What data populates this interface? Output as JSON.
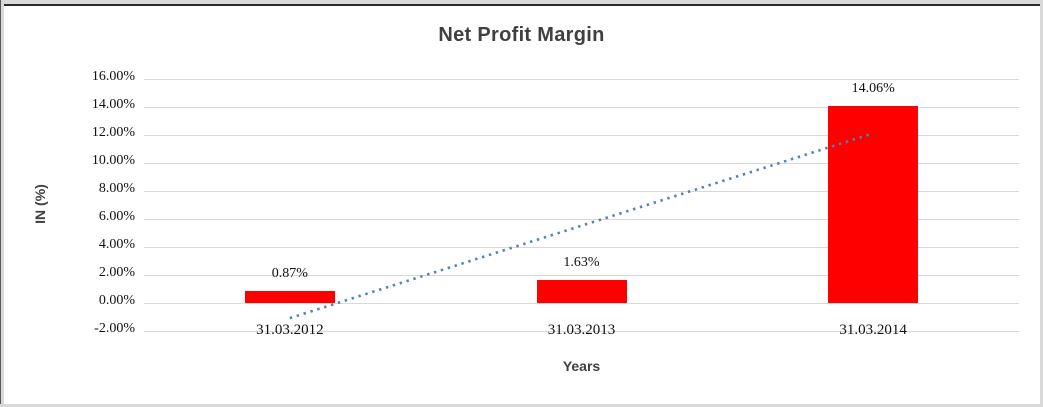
{
  "chart_data": {
    "type": "bar",
    "title": "Net Profit Margin",
    "xlabel": "Years",
    "ylabel": "IN (%)",
    "categories": [
      "31.03.2012",
      "31.03.2013",
      "31.03.2014"
    ],
    "values": [
      0.87,
      1.63,
      14.06
    ],
    "data_labels": [
      "0.87%",
      "1.63%",
      "14.06%"
    ],
    "ylim": [
      -2,
      16
    ],
    "ytick_values": [
      16,
      14,
      12,
      10,
      8,
      6,
      4,
      2,
      0,
      -2
    ],
    "ytick_labels": [
      "16.00%",
      "14.00%",
      "12.00%",
      "10.00%",
      "8.00%",
      "6.00%",
      "4.00%",
      "2.00%",
      "0.00%",
      "-2.00%"
    ],
    "grid": true,
    "legend": "none",
    "bar_color": "#FF0000",
    "gridline_color": "#D9D9D9",
    "title_color": "#404040",
    "axis_title_color": "#404040",
    "tick_text_color": "#111111",
    "trendline": {
      "type": "linear",
      "style": "dotted",
      "color": "#4F81BD",
      "x_indices": [
        0,
        2
      ],
      "values": [
        -1.08,
        12.12
      ]
    }
  }
}
